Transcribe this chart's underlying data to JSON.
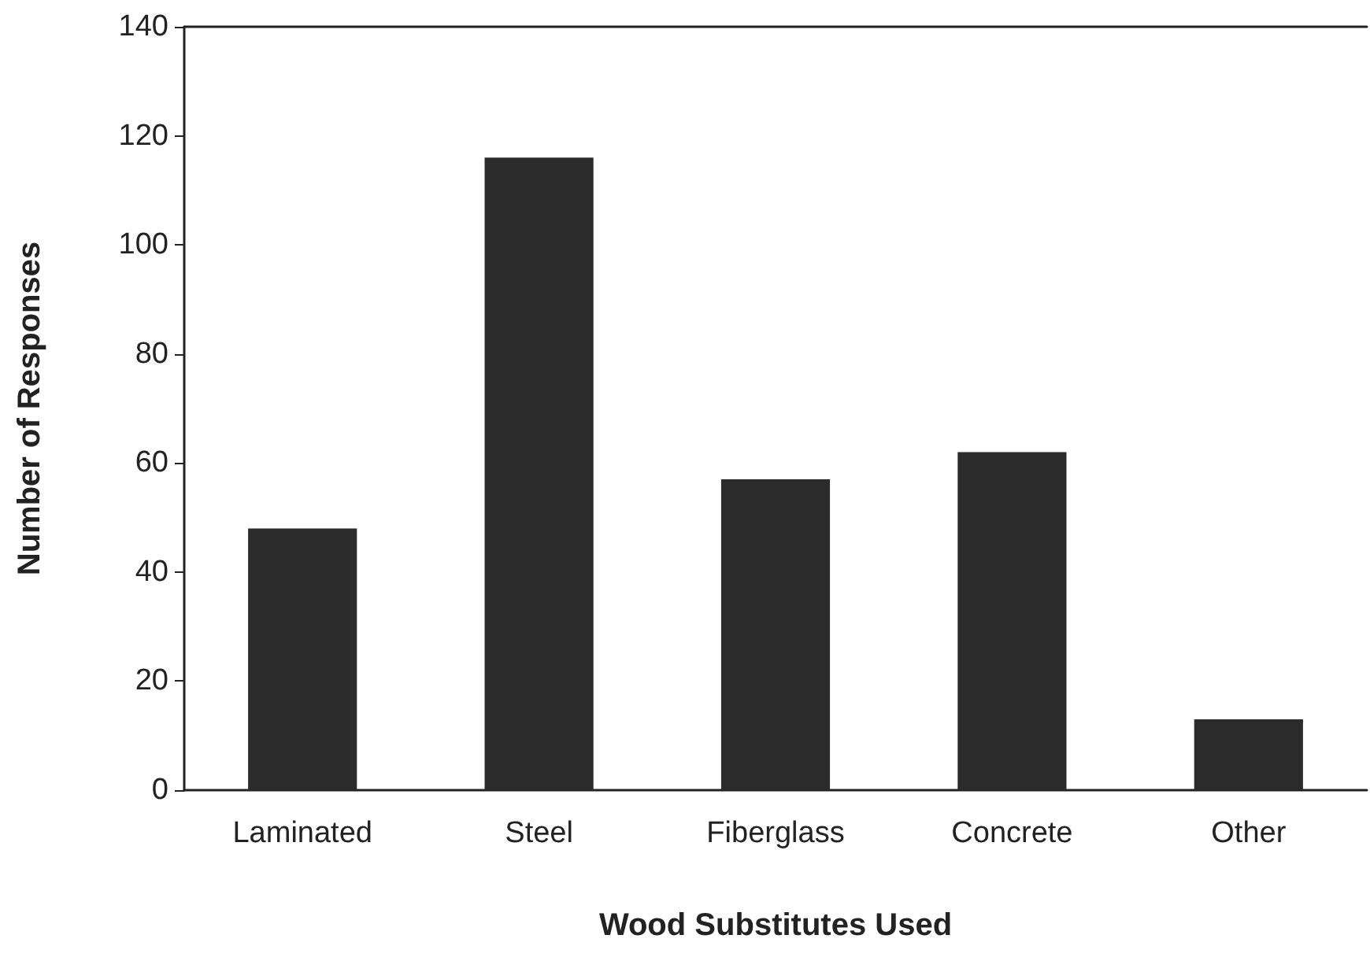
{
  "chart_data": {
    "type": "bar",
    "xlabel": "Wood Substitutes Used",
    "ylabel": "Number of Responses",
    "categories": [
      "Laminated",
      "Steel",
      "Fiberglass",
      "Concrete",
      "Other"
    ],
    "values": [
      48,
      116,
      57,
      62,
      13
    ],
    "color": "#2b2b2b",
    "ylim": [
      0,
      140
    ],
    "yticks": [
      0,
      20,
      40,
      60,
      80,
      100,
      120,
      140
    ],
    "grid": false
  }
}
